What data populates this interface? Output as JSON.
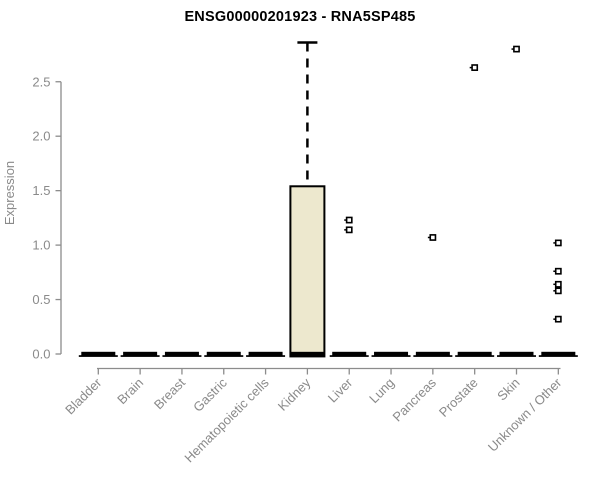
{
  "chart_data": {
    "type": "boxplot",
    "title": "ENSG00000201923 - RNA5SP485",
    "ylabel": "Expression",
    "xlabel": "",
    "y_ticks": [
      0.0,
      0.5,
      1.0,
      1.5,
      2.0,
      2.5
    ],
    "ylim": [
      0,
      2.9
    ],
    "grid": false,
    "legend": "none",
    "categories": [
      "Bladder",
      "Brain",
      "Breast",
      "Gastric",
      "Hematopoietic cells",
      "Kidney",
      "Liver",
      "Lung",
      "Pancreas",
      "Prostate",
      "Skin",
      "Unknown / Other"
    ],
    "series": [
      {
        "category": "Bladder",
        "q1": 0,
        "median": 0,
        "q3": 0,
        "whisker_low": 0,
        "whisker_high": 0,
        "outliers": []
      },
      {
        "category": "Brain",
        "q1": 0,
        "median": 0,
        "q3": 0,
        "whisker_low": 0,
        "whisker_high": 0,
        "outliers": []
      },
      {
        "category": "Breast",
        "q1": 0,
        "median": 0,
        "q3": 0,
        "whisker_low": 0,
        "whisker_high": 0,
        "outliers": []
      },
      {
        "category": "Gastric",
        "q1": 0,
        "median": 0,
        "q3": 0,
        "whisker_low": 0,
        "whisker_high": 0,
        "outliers": []
      },
      {
        "category": "Hematopoietic cells",
        "q1": 0,
        "median": 0,
        "q3": 0,
        "whisker_low": 0,
        "whisker_high": 0,
        "outliers": []
      },
      {
        "category": "Kidney",
        "q1": 0,
        "median": 0.02,
        "q3": 1.54,
        "whisker_low": 0,
        "whisker_high": 2.86,
        "outliers": []
      },
      {
        "category": "Liver",
        "q1": 0,
        "median": 0,
        "q3": 0,
        "whisker_low": 0,
        "whisker_high": 0,
        "outliers": [
          1.23,
          1.14
        ]
      },
      {
        "category": "Lung",
        "q1": 0,
        "median": 0,
        "q3": 0,
        "whisker_low": 0,
        "whisker_high": 0,
        "outliers": []
      },
      {
        "category": "Pancreas",
        "q1": 0,
        "median": 0,
        "q3": 0,
        "whisker_low": 0,
        "whisker_high": 0,
        "outliers": [
          1.07
        ]
      },
      {
        "category": "Prostate",
        "q1": 0,
        "median": 0,
        "q3": 0,
        "whisker_low": 0,
        "whisker_high": 0,
        "outliers": [
          2.63
        ]
      },
      {
        "category": "Skin",
        "q1": 0,
        "median": 0,
        "q3": 0,
        "whisker_low": 0,
        "whisker_high": 0,
        "outliers": [
          2.8
        ]
      },
      {
        "category": "Unknown / Other",
        "q1": 0,
        "median": 0,
        "q3": 0,
        "whisker_low": 0,
        "whisker_high": 0,
        "outliers": [
          1.02,
          0.76,
          0.64,
          0.58,
          0.32
        ]
      }
    ],
    "colors": {
      "box_fill": "#EDE8CE",
      "box_stroke": "#000000",
      "median": "#000000",
      "whisker": "#000000",
      "outlier_stroke": "#000000",
      "outlier_fill": "#FFFFFF",
      "axis_line": "#8C8C8C",
      "tick_label": "#8A8A8A",
      "title": "#000000",
      "background": "#FFFFFF"
    }
  }
}
